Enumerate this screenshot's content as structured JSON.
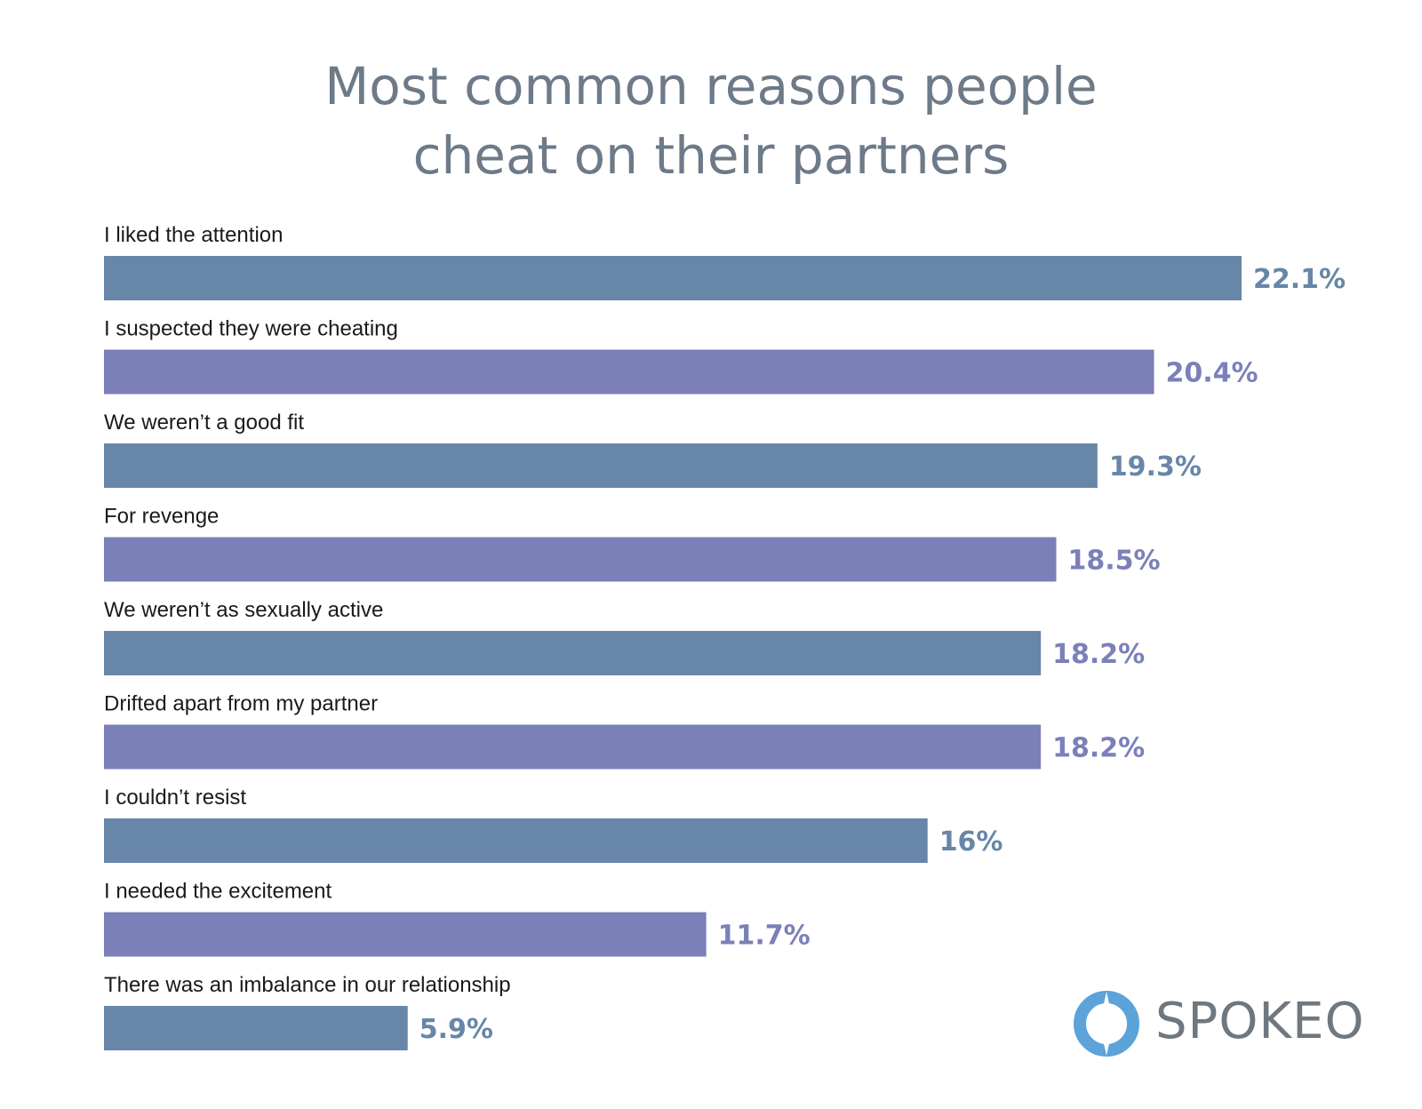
{
  "chart_data": {
    "type": "bar",
    "orientation": "horizontal",
    "title_lines": [
      "Most common reasons people",
      "cheat on their partners"
    ],
    "categories": [
      "I liked the attention",
      "I suspected they were cheating",
      "We weren’t a good fit",
      "For revenge",
      "We weren’t as sexually active",
      "Drifted apart from my partner",
      "I couldn’t resist",
      "I needed the excitement",
      "There was an imbalance in our relationship"
    ],
    "values": [
      22.1,
      20.4,
      19.3,
      18.5,
      18.2,
      18.2,
      16,
      11.7,
      5.9
    ],
    "value_labels": [
      "22.1%",
      "20.4%",
      "19.3%",
      "18.5%",
      "18.2%",
      "18.2%",
      "16%",
      "11.7%",
      "5.9%"
    ],
    "bar_colors": [
      "#6786a8",
      "#7b80b9",
      "#6786a8",
      "#7b80b9",
      "#6786a8",
      "#7b80b9",
      "#6786a8",
      "#7b80b9",
      "#6786a8"
    ],
    "value_label_colors": [
      "#6786a8",
      "#7b80b9",
      "#6786a8",
      "#7b80b9",
      "#7b80b9",
      "#7b80b9",
      "#6786a8",
      "#7b80b9",
      "#6786a8"
    ],
    "xlim": [
      0,
      22.1
    ],
    "grid": false,
    "legend": "none"
  },
  "logo": {
    "text": "SPOKEO",
    "ring_color": "#5ba3d9",
    "text_color": "#6f7780"
  }
}
